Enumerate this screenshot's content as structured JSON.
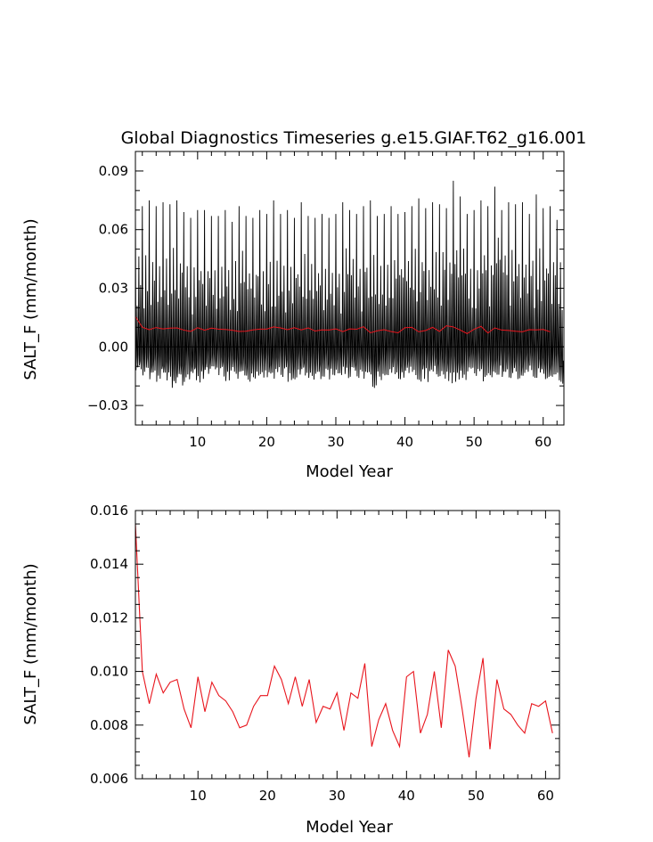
{
  "colors": {
    "monthly": "#000000",
    "annual": "#e8141c",
    "axes": "#000000"
  },
  "chart_data": [
    {
      "type": "line",
      "title": "Global Diagnostics Timeseries g.e15.GIAF.T62_g16.001",
      "xlabel": "Model Year",
      "ylabel": "SALT_F (mm/month)",
      "xlim": [
        1,
        63
      ],
      "ylim": [
        -0.04,
        0.1
      ],
      "xticks": [
        10,
        20,
        30,
        40,
        50,
        60
      ],
      "yticks": [
        -0.03,
        0.0,
        0.03,
        0.06,
        0.09
      ],
      "ytick_labels": [
        "−0.03",
        "0.00",
        "0.03",
        "0.06",
        "0.09"
      ],
      "zero_line": true,
      "monthly_peaks": [
        0.074,
        0.072,
        0.075,
        0.072,
        0.074,
        0.073,
        0.075,
        0.069,
        0.066,
        0.07,
        0.07,
        0.067,
        0.067,
        0.07,
        0.064,
        0.072,
        0.067,
        0.066,
        0.07,
        0.068,
        0.075,
        0.068,
        0.07,
        0.066,
        0.074,
        0.067,
        0.066,
        0.068,
        0.066,
        0.068,
        0.074,
        0.07,
        0.068,
        0.072,
        0.075,
        0.067,
        0.068,
        0.072,
        0.068,
        0.069,
        0.072,
        0.076,
        0.071,
        0.074,
        0.073,
        0.071,
        0.085,
        0.077,
        0.068,
        0.07,
        0.075,
        0.072,
        0.082,
        0.07,
        0.074,
        0.073,
        0.074,
        0.068,
        0.078,
        0.071,
        0.072,
        0.065
      ],
      "monthly_troughs": [
        -0.015,
        -0.016,
        -0.017,
        -0.018,
        -0.019,
        -0.024,
        -0.02,
        -0.019,
        -0.018,
        -0.019,
        -0.017,
        -0.016,
        -0.017,
        -0.018,
        -0.017,
        -0.016,
        -0.018,
        -0.017,
        -0.016,
        -0.018,
        -0.017,
        -0.016,
        -0.019,
        -0.017,
        -0.016,
        -0.018,
        -0.017,
        -0.016,
        -0.018,
        -0.017,
        -0.016,
        -0.017,
        -0.018,
        -0.02,
        -0.022,
        -0.018,
        -0.016,
        -0.017,
        -0.018,
        -0.016,
        -0.017,
        -0.019,
        -0.018,
        -0.016,
        -0.017,
        -0.019,
        -0.018,
        -0.017,
        -0.016,
        -0.017,
        -0.018,
        -0.017,
        -0.016,
        -0.018,
        -0.017,
        -0.019,
        -0.018,
        -0.016,
        -0.017,
        -0.018,
        -0.017,
        -0.02
      ],
      "series": [
        {
          "values": [
            0.0155,
            0.01,
            0.0088,
            0.0099,
            0.0092,
            0.0096,
            0.0097,
            0.0086,
            0.0079,
            0.0098,
            0.0085,
            0.0096,
            0.0091,
            0.0089,
            0.0085,
            0.0079,
            0.008,
            0.0087,
            0.0091,
            0.0091,
            0.0102,
            0.0097,
            0.0088,
            0.0098,
            0.0087,
            0.0097,
            0.0081,
            0.0087,
            0.0086,
            0.0092,
            0.0078,
            0.0092,
            0.009,
            0.0103,
            0.0072,
            0.0082,
            0.0088,
            0.0078,
            0.0072,
            0.0098,
            0.01,
            0.0077,
            0.0084,
            0.01,
            0.0079,
            0.0108,
            0.0102,
            0.0086,
            0.0068,
            0.009,
            0.0105,
            0.0071,
            0.0097,
            0.0086,
            0.0084,
            0.008,
            0.0077,
            0.0088,
            0.0087,
            0.0089,
            0.0077
          ]
        }
      ]
    },
    {
      "type": "line",
      "title": "",
      "xlabel": "Model Year",
      "ylabel": "SALT_F (mm/month)",
      "xlim": [
        1,
        62
      ],
      "ylim": [
        0.006,
        0.016
      ],
      "xticks": [
        10,
        20,
        30,
        40,
        50,
        60
      ],
      "yticks": [
        0.006,
        0.008,
        0.01,
        0.012,
        0.014,
        0.016
      ],
      "ytick_labels": [
        "0.006",
        "0.008",
        "0.010",
        "0.012",
        "0.014",
        "0.016"
      ],
      "series": [
        {
          "values": [
            0.0155,
            0.01,
            0.0088,
            0.0099,
            0.0092,
            0.0096,
            0.0097,
            0.0086,
            0.0079,
            0.0098,
            0.0085,
            0.0096,
            0.0091,
            0.0089,
            0.0085,
            0.0079,
            0.008,
            0.0087,
            0.0091,
            0.0091,
            0.0102,
            0.0097,
            0.0088,
            0.0098,
            0.0087,
            0.0097,
            0.0081,
            0.0087,
            0.0086,
            0.0092,
            0.0078,
            0.0092,
            0.009,
            0.0103,
            0.0072,
            0.0082,
            0.0088,
            0.0078,
            0.0072,
            0.0098,
            0.01,
            0.0077,
            0.0084,
            0.01,
            0.0079,
            0.0108,
            0.0102,
            0.0086,
            0.0068,
            0.009,
            0.0105,
            0.0071,
            0.0097,
            0.0086,
            0.0084,
            0.008,
            0.0077,
            0.0088,
            0.0087,
            0.0089,
            0.0077
          ]
        }
      ]
    }
  ]
}
